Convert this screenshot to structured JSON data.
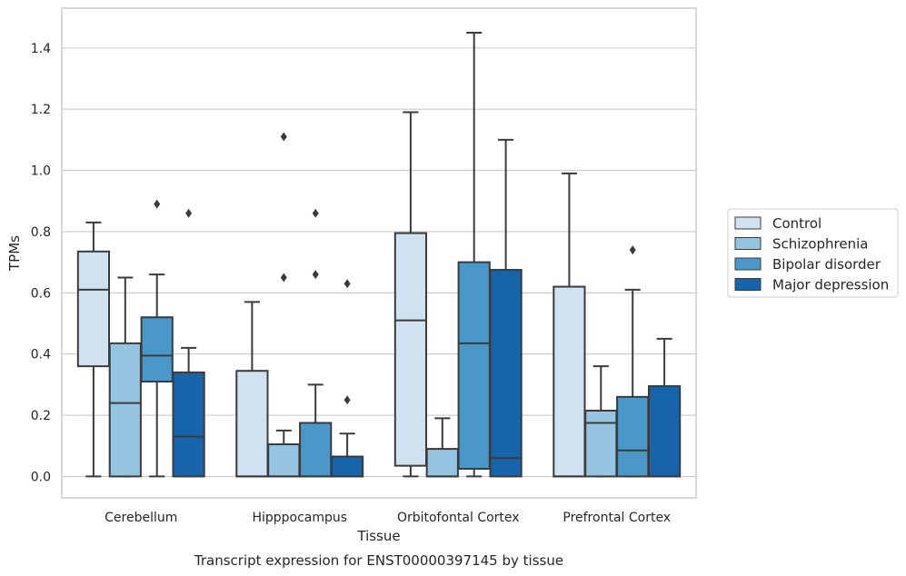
{
  "chart_data": {
    "type": "box",
    "title": "",
    "caption": "Transcript expression for ENST00000397145 by tissue",
    "xlabel": "Tissue",
    "ylabel": "TPMs",
    "ylim": [
      -0.07,
      1.53
    ],
    "yticks": [
      0.0,
      0.2,
      0.4,
      0.6,
      0.8,
      1.0,
      1.2,
      1.4
    ],
    "ytick_labels": [
      "0.0",
      "0.2",
      "0.4",
      "0.6",
      "0.8",
      "1.0",
      "1.2",
      "1.4"
    ],
    "grid": true,
    "legend_position": "right",
    "categories": [
      "Cerebellum",
      "Hipppocampus",
      "Orbitofontal Cortex",
      "Prefrontal Cortex"
    ],
    "series": [
      {
        "name": "Control",
        "color": "#d0e1f2",
        "boxes": [
          {
            "whisker_low": 0.0,
            "q1": 0.36,
            "median": 0.61,
            "q3": 0.735,
            "whisker_high": 0.83,
            "outliers": []
          },
          {
            "whisker_low": 0.0,
            "q1": 0.0,
            "median": 0.0,
            "q3": 0.345,
            "whisker_high": 0.57,
            "outliers": []
          },
          {
            "whisker_low": 0.0,
            "q1": 0.035,
            "median": 0.51,
            "q3": 0.795,
            "whisker_high": 1.19,
            "outliers": []
          },
          {
            "whisker_low": 0.0,
            "q1": 0.0,
            "median": 0.0,
            "q3": 0.62,
            "whisker_high": 0.99,
            "outliers": []
          }
        ]
      },
      {
        "name": "Schizophrenia",
        "color": "#94c4df",
        "boxes": [
          {
            "whisker_low": 0.0,
            "q1": 0.0,
            "median": 0.24,
            "q3": 0.435,
            "whisker_high": 0.65,
            "outliers": []
          },
          {
            "whisker_low": 0.0,
            "q1": 0.0,
            "median": 0.0,
            "q3": 0.105,
            "whisker_high": 0.15,
            "outliers": [
              0.65,
              1.11
            ]
          },
          {
            "whisker_low": 0.0,
            "q1": 0.0,
            "median": 0.0,
            "q3": 0.09,
            "whisker_high": 0.19,
            "outliers": []
          },
          {
            "whisker_low": 0.0,
            "q1": 0.0,
            "median": 0.175,
            "q3": 0.215,
            "whisker_high": 0.36,
            "outliers": []
          }
        ]
      },
      {
        "name": "Bipolar disorder",
        "color": "#4a98c9",
        "boxes": [
          {
            "whisker_low": 0.0,
            "q1": 0.31,
            "median": 0.395,
            "q3": 0.52,
            "whisker_high": 0.66,
            "outliers": [
              0.89
            ]
          },
          {
            "whisker_low": 0.0,
            "q1": 0.0,
            "median": 0.0,
            "q3": 0.175,
            "whisker_high": 0.3,
            "outliers": [
              0.66,
              0.86
            ]
          },
          {
            "whisker_low": 0.0,
            "q1": 0.025,
            "median": 0.435,
            "q3": 0.7,
            "whisker_high": 1.45,
            "outliers": []
          },
          {
            "whisker_low": 0.0,
            "q1": 0.0,
            "median": 0.085,
            "q3": 0.26,
            "whisker_high": 0.61,
            "outliers": [
              0.74
            ]
          }
        ]
      },
      {
        "name": "Major depression",
        "color": "#1764ab",
        "boxes": [
          {
            "whisker_low": 0.0,
            "q1": 0.0,
            "median": 0.13,
            "q3": 0.34,
            "whisker_high": 0.42,
            "outliers": [
              0.86
            ]
          },
          {
            "whisker_low": 0.0,
            "q1": 0.0,
            "median": 0.0,
            "q3": 0.065,
            "whisker_high": 0.14,
            "outliers": [
              0.25,
              0.63
            ]
          },
          {
            "whisker_low": 0.0,
            "q1": 0.0,
            "median": 0.06,
            "q3": 0.675,
            "whisker_high": 1.1,
            "outliers": []
          },
          {
            "whisker_low": 0.0,
            "q1": 0.0,
            "median": 0.0,
            "q3": 0.295,
            "whisker_high": 0.45,
            "outliers": []
          }
        ]
      }
    ],
    "styles": {
      "grid_color": "#cccccc",
      "frame_color": "#cccccc",
      "line_color": "#3b3b3b"
    }
  }
}
